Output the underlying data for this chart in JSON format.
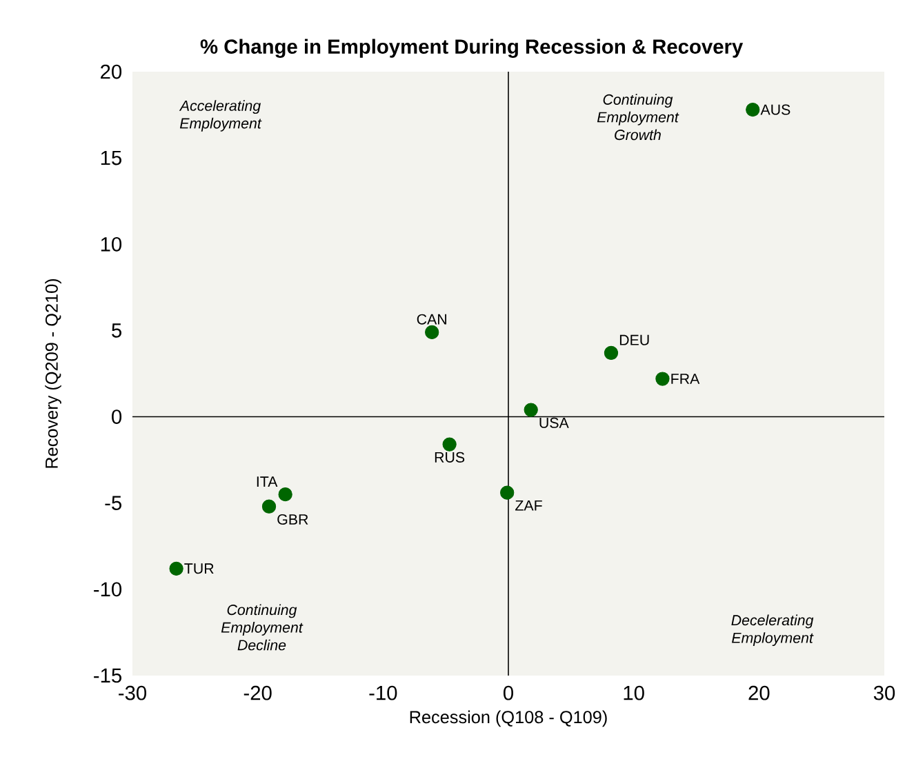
{
  "chart_data": {
    "type": "scatter",
    "title": "% Change in Employment During Recession & Recovery",
    "xlabel": "Recession (Q108 - Q109)",
    "ylabel": "Recovery (Q209 - Q210)",
    "x": [
      19.5,
      -6.1,
      8.2,
      12.3,
      1.8,
      -4.7,
      -0.1,
      -17.8,
      -19.1,
      -26.5
    ],
    "values": [
      17.8,
      4.9,
      3.7,
      2.2,
      0.4,
      -1.6,
      -4.4,
      -4.5,
      -5.2,
      -8.8
    ],
    "color": "#006600",
    "marker": "circle",
    "xlim": [
      -30,
      30
    ],
    "xticks": [
      -30,
      -20,
      -10,
      0,
      10,
      20,
      30
    ],
    "ylim": [
      -15,
      20
    ],
    "yticks": [
      -15,
      -10,
      -5,
      0,
      5,
      10,
      15,
      20
    ],
    "annotations": [
      {
        "text": "AUS",
        "x": 19.5,
        "y": 17.8
      },
      {
        "text": "CAN",
        "x": -6.1,
        "y": 4.9
      },
      {
        "text": "DEU",
        "x": 8.2,
        "y": 3.7
      },
      {
        "text": "FRA",
        "x": 12.3,
        "y": 2.2
      },
      {
        "text": "USA",
        "x": 1.8,
        "y": 0.4
      },
      {
        "text": "RUS",
        "x": -4.7,
        "y": -1.6
      },
      {
        "text": "ZAF",
        "x": -0.1,
        "y": -4.4
      },
      {
        "text": "ITA",
        "x": -17.8,
        "y": -4.5
      },
      {
        "text": "GBR",
        "x": -19.1,
        "y": -5.2
      },
      {
        "text": "TUR",
        "x": -26.5,
        "y": -8.8
      },
      "Accelerating Employment",
      "Continuing Employment Growth",
      "Continuing Employment Decline",
      "Decelerating Employment"
    ]
  }
}
